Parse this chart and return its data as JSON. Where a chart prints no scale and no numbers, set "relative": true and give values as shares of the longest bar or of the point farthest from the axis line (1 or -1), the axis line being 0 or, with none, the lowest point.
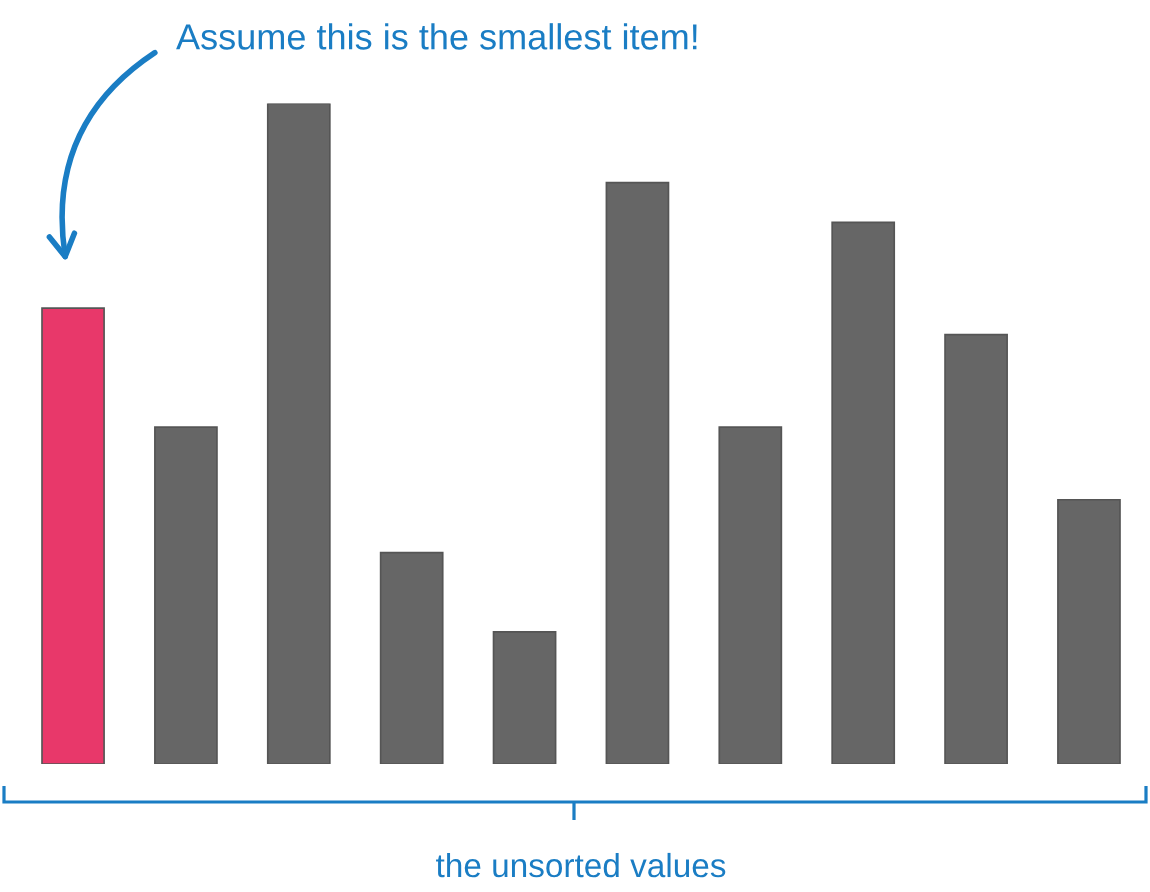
{
  "chart_data": {
    "type": "bar",
    "relative": true,
    "categories": [
      null,
      null,
      null,
      null,
      null,
      null,
      null,
      null,
      null,
      null
    ],
    "values": [
      0.69,
      0.51,
      1,
      0.32,
      0.2,
      0.88,
      0.51,
      0.82,
      0.65,
      0.4
    ],
    "colors": [
      "#e8386a",
      "#666666",
      "#666666",
      "#666666",
      "#666666",
      "#666666",
      "#666666",
      "#666666",
      "#666666",
      "#666666"
    ],
    "xlabel": "the unsorted values",
    "annotations": [
      "Assume this is the smallest item!"
    ],
    "tick_labels": false
  }
}
